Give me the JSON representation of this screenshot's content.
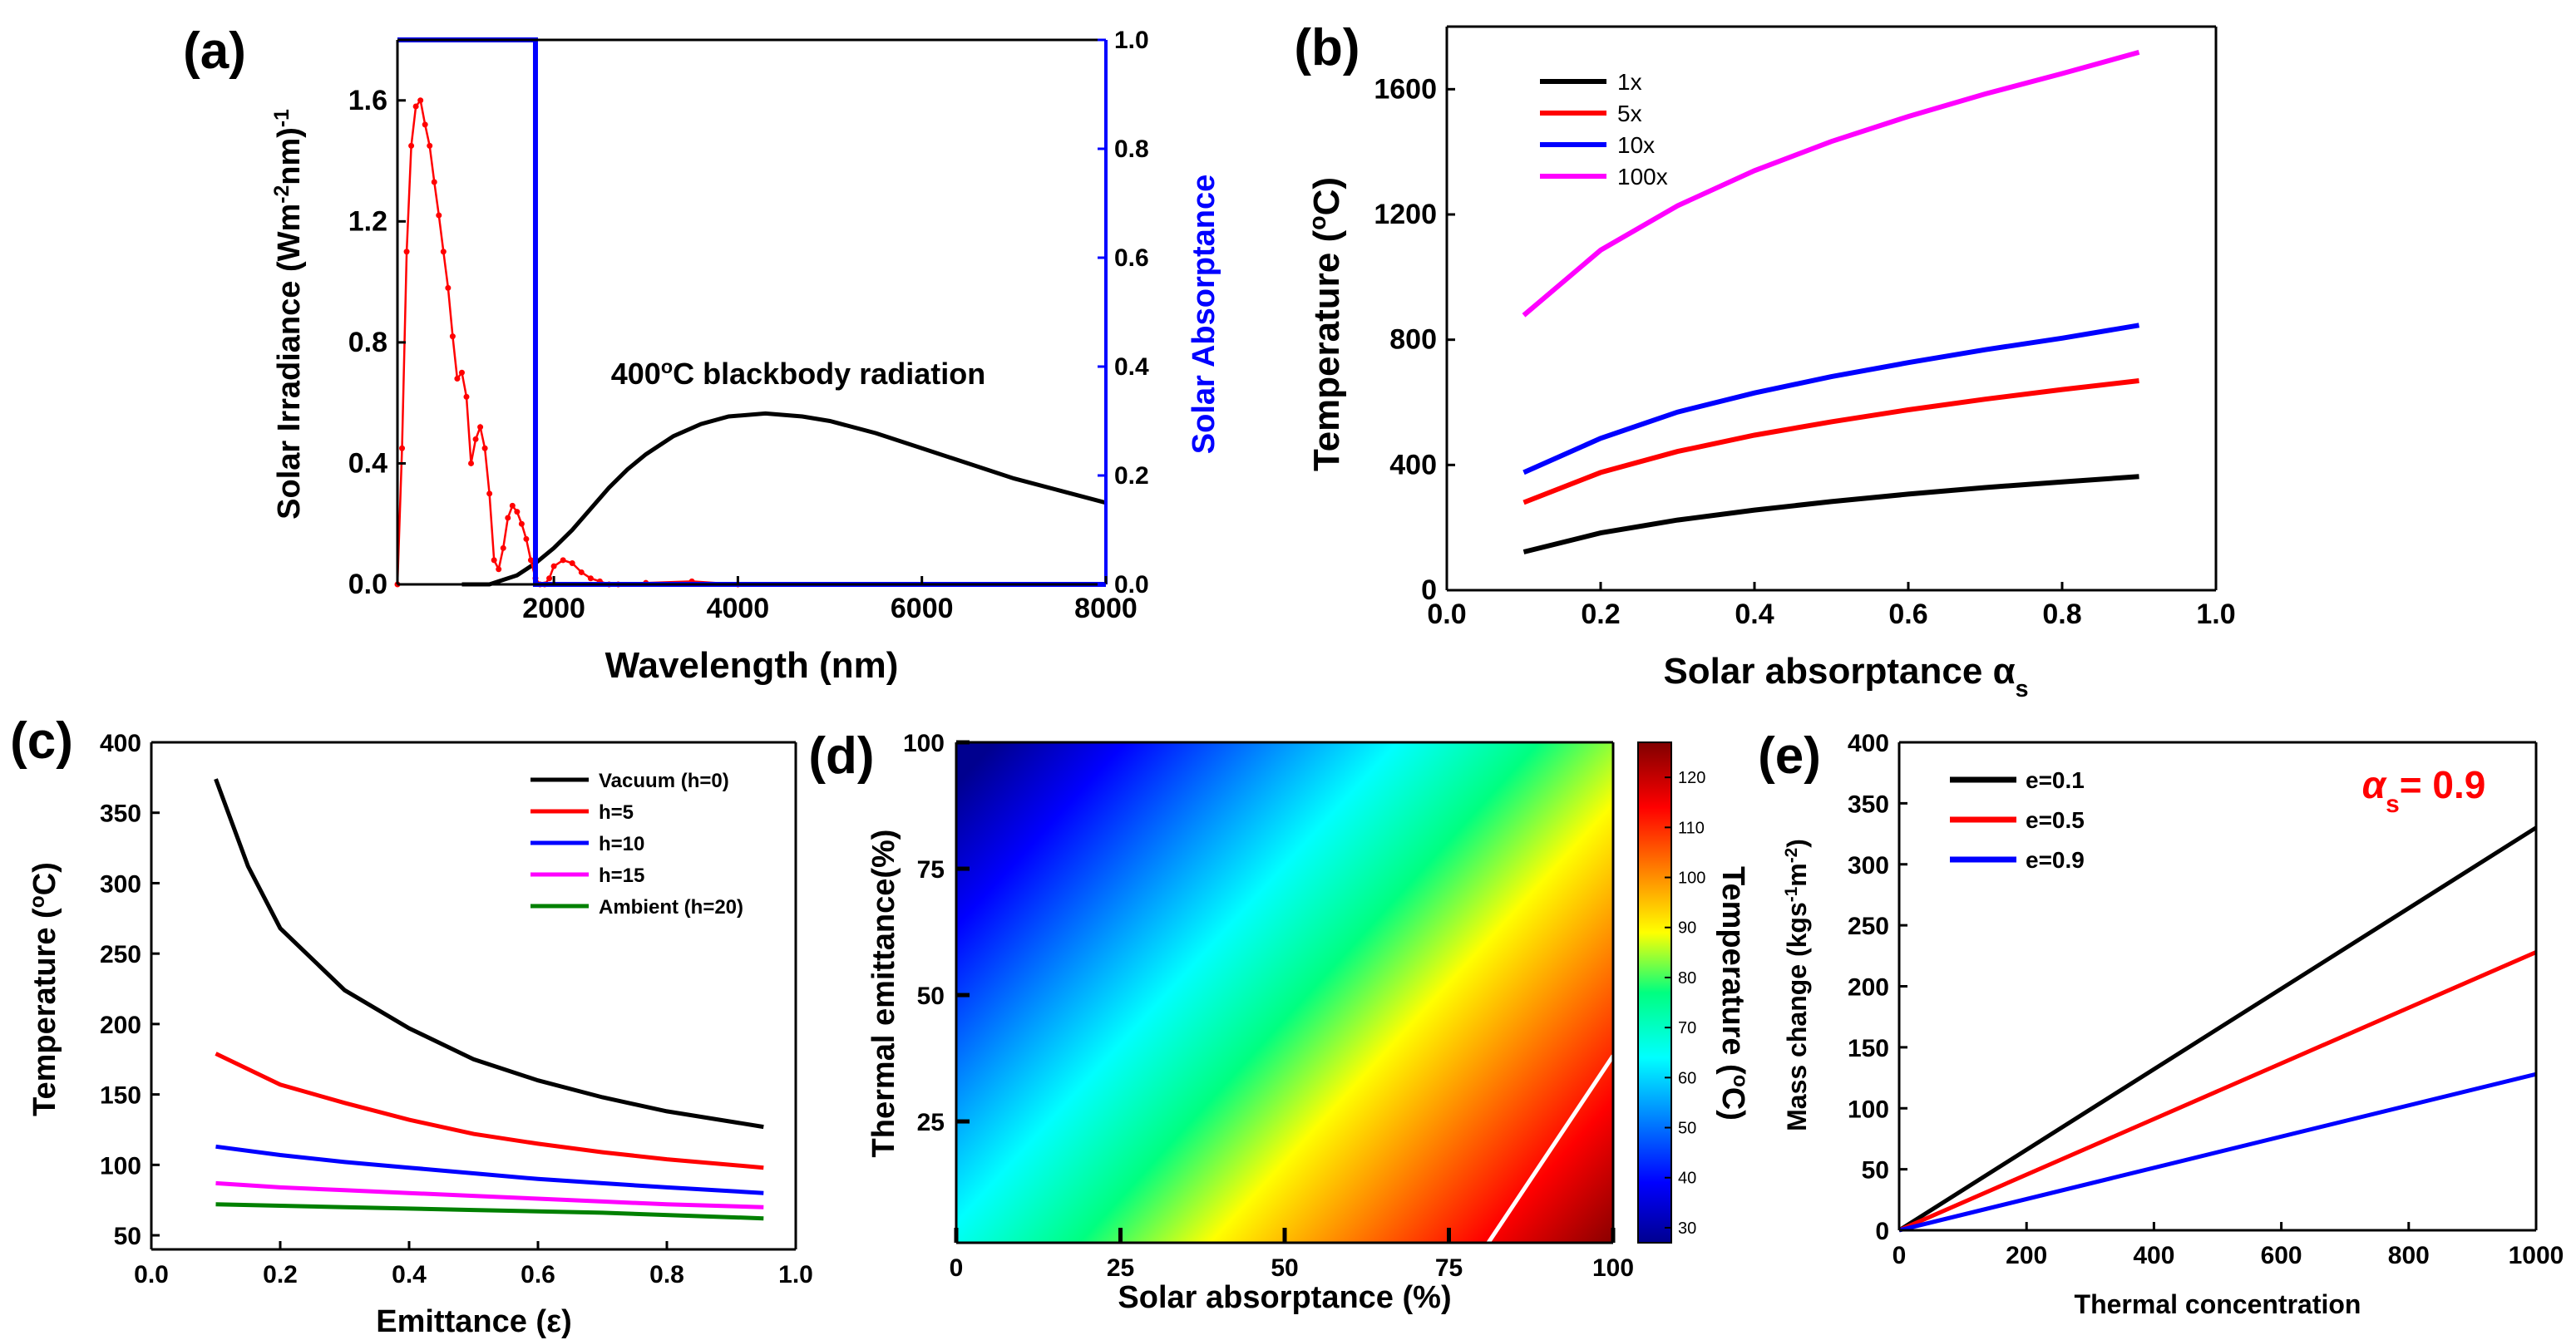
{
  "chart_data": [
    {
      "id": "a",
      "panel_label": "(a)",
      "type": "line",
      "xlabel": "Wavelength (nm)",
      "ylabel_parts": [
        "Solar Irradiance (Wm",
        "-2",
        "nm)",
        "-1"
      ],
      "y2label": "Solar Absorptance",
      "xlim": [
        300,
        8000
      ],
      "ylim": [
        0,
        1.8
      ],
      "y2lim": [
        0,
        1.0
      ],
      "x_ticks": [
        "2000",
        "4000",
        "6000",
        "8000"
      ],
      "y_ticks": [
        "0.0",
        "0.4",
        "0.8",
        "1.2",
        "1.6"
      ],
      "y2_ticks": [
        "0.0",
        "0.2",
        "0.4",
        "0.6",
        "0.8",
        "1.0"
      ],
      "annotation_parts": [
        "400",
        "o",
        "C blackbody radiation"
      ],
      "colors": {
        "solar": "#ff0000",
        "blackbody": "#000000",
        "absorptance": "#0000ff"
      },
      "absorptance_step": {
        "cutoff_nm": 1800,
        "high": 1.0,
        "low": 0.0
      },
      "solar_spectrum": {
        "x": [
          300,
          350,
          400,
          450,
          500,
          550,
          600,
          650,
          700,
          750,
          800,
          850,
          900,
          950,
          1000,
          1050,
          1100,
          1150,
          1200,
          1250,
          1300,
          1350,
          1400,
          1450,
          1500,
          1550,
          1600,
          1650,
          1700,
          1750,
          1800,
          1850,
          1900,
          1950,
          2000,
          2100,
          2200,
          2300,
          2400,
          2500,
          2600,
          2700,
          3000,
          3500,
          4000
        ],
        "y": [
          0.0,
          0.45,
          1.1,
          1.45,
          1.58,
          1.6,
          1.52,
          1.45,
          1.33,
          1.22,
          1.1,
          0.98,
          0.82,
          0.68,
          0.7,
          0.62,
          0.4,
          0.48,
          0.52,
          0.45,
          0.3,
          0.08,
          0.05,
          0.12,
          0.22,
          0.26,
          0.24,
          0.2,
          0.15,
          0.08,
          0.02,
          0.0,
          0.0,
          0.02,
          0.06,
          0.08,
          0.07,
          0.04,
          0.02,
          0.01,
          0.0,
          0.0,
          0.005,
          0.01,
          0.0
        ]
      },
      "blackbody": {
        "x": [
          1000,
          1300,
          1600,
          1800,
          2000,
          2200,
          2400,
          2600,
          2800,
          3000,
          3300,
          3600,
          3900,
          4300,
          4700,
          5000,
          5500,
          6000,
          6500,
          7000,
          7500,
          8000
        ],
        "y": [
          0.0,
          0.0,
          0.03,
          0.07,
          0.12,
          0.18,
          0.25,
          0.32,
          0.38,
          0.43,
          0.49,
          0.53,
          0.555,
          0.565,
          0.555,
          0.54,
          0.5,
          0.45,
          0.4,
          0.35,
          0.31,
          0.27
        ]
      }
    },
    {
      "id": "b",
      "panel_label": "(b)",
      "type": "line",
      "xlabel_parts": [
        "Solar absorptance ",
        "α",
        "s"
      ],
      "ylabel_parts": [
        "Temperature (",
        "o",
        "C)"
      ],
      "xlim": [
        0.0,
        1.0
      ],
      "ylim": [
        0,
        1800
      ],
      "x_ticks": [
        "0.0",
        "0.2",
        "0.4",
        "0.6",
        "0.8",
        "1.0"
      ],
      "y_ticks": [
        "0",
        "400",
        "800",
        "1200",
        "1600"
      ],
      "series": [
        {
          "name": "1x",
          "color": "#000000",
          "x": [
            0.1,
            0.2,
            0.3,
            0.4,
            0.5,
            0.6,
            0.7,
            0.8,
            0.9
          ],
          "values": [
            122,
            183,
            224,
            256,
            283,
            307,
            328,
            346,
            363
          ]
        },
        {
          "name": "5x",
          "color": "#ff0000",
          "x": [
            0.1,
            0.2,
            0.3,
            0.4,
            0.5,
            0.6,
            0.7,
            0.8,
            0.9
          ],
          "values": [
            280,
            376,
            443,
            495,
            538,
            576,
            610,
            641,
            669
          ]
        },
        {
          "name": "10x",
          "color": "#0000ff",
          "x": [
            0.1,
            0.2,
            0.3,
            0.4,
            0.5,
            0.6,
            0.7,
            0.8,
            0.9
          ],
          "values": [
            376,
            485,
            569,
            630,
            682,
            727,
            768,
            805,
            846
          ]
        },
        {
          "name": "100x",
          "color": "#ff00ff",
          "x": [
            0.1,
            0.2,
            0.3,
            0.4,
            0.5,
            0.6,
            0.7,
            0.8,
            0.9
          ],
          "values": [
            878,
            1086,
            1228,
            1340,
            1433,
            1513,
            1585,
            1650,
            1718
          ]
        }
      ]
    },
    {
      "id": "c",
      "panel_label": "(c)",
      "type": "line",
      "xlabel_parts": [
        "Emittance (",
        "ε",
        ")"
      ],
      "ylabel_parts": [
        "Temperature (",
        "o",
        "C)"
      ],
      "xlim": [
        0.0,
        1.0
      ],
      "ylim": [
        40,
        400
      ],
      "x_ticks": [
        "0.0",
        "0.2",
        "0.4",
        "0.6",
        "0.8",
        "1.0"
      ],
      "y_ticks": [
        "50",
        "100",
        "150",
        "200",
        "250",
        "300",
        "350",
        "400"
      ],
      "series": [
        {
          "name": "Vacuum (h=0)",
          "color": "#000000",
          "x": [
            0.1,
            0.15,
            0.2,
            0.3,
            0.4,
            0.5,
            0.6,
            0.7,
            0.8,
            0.95
          ],
          "values": [
            374,
            312,
            268,
            224,
            197,
            175,
            160,
            148,
            138,
            127
          ]
        },
        {
          "name": "h=5",
          "color": "#ff0000",
          "x": [
            0.1,
            0.2,
            0.3,
            0.4,
            0.5,
            0.6,
            0.7,
            0.8,
            0.95
          ],
          "values": [
            179,
            157,
            144,
            132,
            122,
            115,
            109,
            104,
            98
          ]
        },
        {
          "name": "h=10",
          "color": "#0000ff",
          "x": [
            0.1,
            0.2,
            0.3,
            0.4,
            0.5,
            0.6,
            0.7,
            0.8,
            0.95
          ],
          "values": [
            113,
            107,
            102,
            98,
            94,
            90,
            87,
            84,
            80
          ]
        },
        {
          "name": "h=15",
          "color": "#ff00ff",
          "x": [
            0.1,
            0.2,
            0.3,
            0.4,
            0.5,
            0.6,
            0.7,
            0.8,
            0.95
          ],
          "values": [
            87,
            84,
            82,
            80,
            78,
            76,
            74,
            72,
            70
          ]
        },
        {
          "name": "Ambient (h=20)",
          "color": "#008000",
          "x": [
            0.1,
            0.3,
            0.5,
            0.7,
            0.95
          ],
          "values": [
            72,
            70,
            68,
            66,
            62
          ]
        }
      ]
    },
    {
      "id": "d",
      "panel_label": "(d)",
      "type": "heatmap",
      "xlabel": "Solar absorptance (%)",
      "ylabel": "Thermal emittance(%)",
      "colorbar_label_parts": [
        "Temperature (",
        "o",
        "C)"
      ],
      "xlim": [
        0,
        100
      ],
      "ylim": [
        1,
        100
      ],
      "x_ticks": [
        "0",
        "25",
        "50",
        "75",
        "100"
      ],
      "y_ticks": [
        "25",
        "50",
        "75",
        "100"
      ],
      "colorbar_range": [
        27,
        127
      ],
      "colorbar_ticks": [
        "30",
        "40",
        "50",
        "60",
        "70",
        "80",
        "90",
        "100",
        "110",
        "120"
      ],
      "white_line": {
        "x": [
          81,
          100
        ],
        "y": [
          1,
          38
        ]
      },
      "colorscale_stops": [
        {
          "t": 0.0,
          "color": "#00008f"
        },
        {
          "t": 0.12,
          "color": "#0000ff"
        },
        {
          "t": 0.37,
          "color": "#00ffff"
        },
        {
          "t": 0.5,
          "color": "#00ff80"
        },
        {
          "t": 0.62,
          "color": "#ffff00"
        },
        {
          "t": 0.87,
          "color": "#ff0000"
        },
        {
          "t": 1.0,
          "color": "#800000"
        }
      ]
    },
    {
      "id": "e",
      "panel_label": "(e)",
      "type": "line",
      "xlabel": "Thermal concentration",
      "ylabel_parts": [
        "Mass change (kgs",
        "-1",
        "m",
        "-2",
        ")"
      ],
      "annotation_parts": [
        "α",
        "s",
        "= 0.9"
      ],
      "xlim": [
        0,
        1000
      ],
      "ylim": [
        0,
        400
      ],
      "x_ticks": [
        "0",
        "200",
        "400",
        "600",
        "800",
        "1000"
      ],
      "y_ticks": [
        "0",
        "50",
        "100",
        "150",
        "200",
        "250",
        "300",
        "350",
        "400"
      ],
      "series": [
        {
          "name": "e=0.1",
          "color": "#000000",
          "x": [
            0,
            1000
          ],
          "values": [
            0,
            330
          ]
        },
        {
          "name": "e=0.5",
          "color": "#ff0000",
          "x": [
            0,
            1000
          ],
          "values": [
            0,
            228
          ]
        },
        {
          "name": "e=0.9",
          "color": "#0000ff",
          "x": [
            0,
            1000
          ],
          "values": [
            0,
            128
          ]
        }
      ]
    }
  ]
}
